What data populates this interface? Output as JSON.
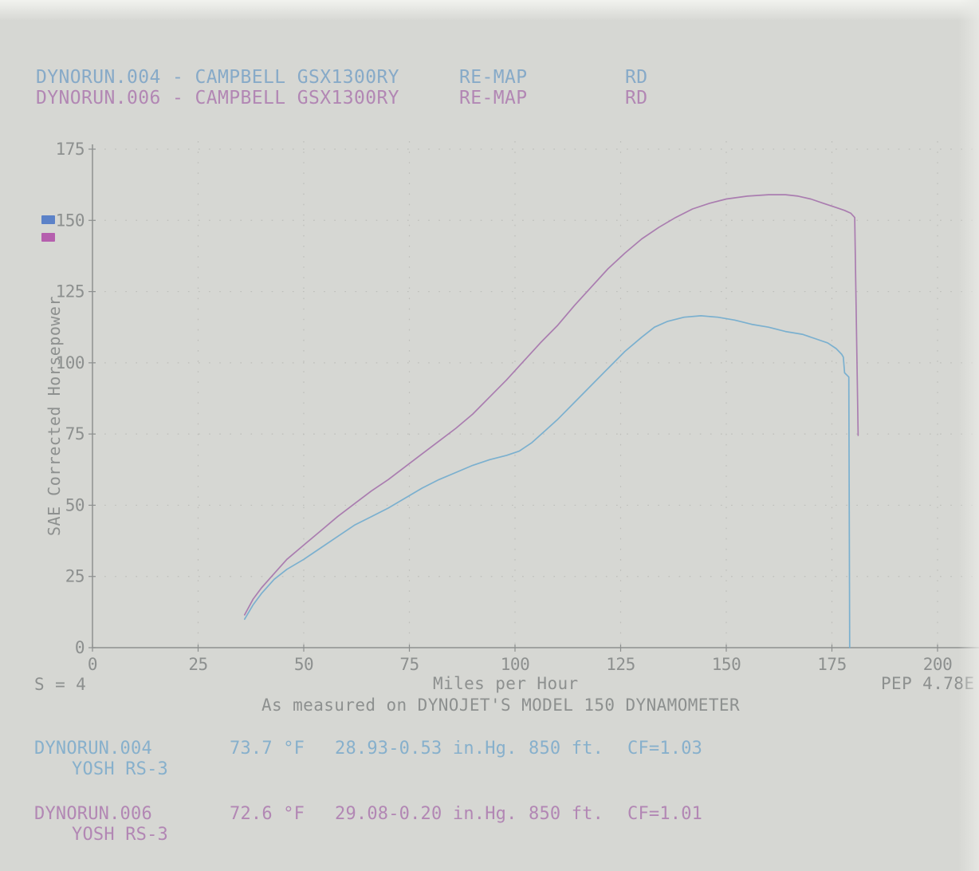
{
  "page": {
    "background": "#d6d7d3"
  },
  "header": {
    "runs": [
      {
        "file": "DYNORUN.004",
        "dash": "-",
        "subject": "CAMPBELL GSX1300RY",
        "note": "RE-MAP",
        "tag": "RD",
        "color": "#87aac8"
      },
      {
        "file": "DYNORUN.006",
        "dash": "-",
        "subject": "CAMPBELL GSX1300RY",
        "note": "RE-MAP",
        "tag": "RD",
        "color": "#b287b4"
      }
    ]
  },
  "legend": {
    "swatches": [
      {
        "run": "DYNORUN.004",
        "color": "#5c82c8"
      },
      {
        "run": "DYNORUN.006",
        "color": "#b55fae"
      }
    ]
  },
  "chart_data": {
    "type": "line",
    "title": "",
    "xlabel": "Miles per Hour",
    "ylabel": "SAE Corrected Horsepower",
    "xlim": [
      0,
      200
    ],
    "ylim": [
      0,
      175
    ],
    "xticks": [
      0,
      25,
      50,
      75,
      100,
      125,
      150,
      175,
      200
    ],
    "yticks": [
      0,
      25,
      50,
      75,
      100,
      125,
      150,
      175
    ],
    "grid": "dotted",
    "grid_color": "#bdbeba",
    "axis_color": "#8d908f",
    "legend_position": "left margin swatches",
    "series": [
      {
        "name": "DYNORUN.004",
        "color": "#76aecf",
        "peak_hp": 116.5,
        "points": [
          [
            36,
            10
          ],
          [
            38,
            15
          ],
          [
            40,
            19
          ],
          [
            43,
            24
          ],
          [
            46,
            27.5
          ],
          [
            50,
            31
          ],
          [
            54,
            35
          ],
          [
            58,
            39
          ],
          [
            62,
            43
          ],
          [
            66,
            46
          ],
          [
            70,
            49
          ],
          [
            74,
            52.5
          ],
          [
            78,
            56
          ],
          [
            82,
            59
          ],
          [
            86,
            61.5
          ],
          [
            90,
            64
          ],
          [
            94,
            66
          ],
          [
            98,
            67.5
          ],
          [
            101,
            69
          ],
          [
            104,
            72
          ],
          [
            107,
            76
          ],
          [
            110,
            80
          ],
          [
            114,
            86
          ],
          [
            118,
            92
          ],
          [
            122,
            98
          ],
          [
            126,
            104
          ],
          [
            130,
            109
          ],
          [
            133,
            112.5
          ],
          [
            136,
            114.5
          ],
          [
            140,
            116
          ],
          [
            144,
            116.5
          ],
          [
            148,
            116
          ],
          [
            152,
            115
          ],
          [
            156,
            113.5
          ],
          [
            160,
            112.5
          ],
          [
            164,
            111
          ],
          [
            168,
            110
          ],
          [
            171,
            108.5
          ],
          [
            174,
            107
          ],
          [
            176,
            105
          ],
          [
            177.3,
            103
          ],
          [
            177.7,
            102
          ],
          [
            178,
            96.5
          ],
          [
            179,
            95
          ],
          [
            179.2,
            0
          ]
        ]
      },
      {
        "name": "DYNORUN.006",
        "color": "#a878ae",
        "peak_hp": 159,
        "points": [
          [
            36,
            11.5
          ],
          [
            38,
            17
          ],
          [
            40,
            21
          ],
          [
            43,
            26
          ],
          [
            46,
            31
          ],
          [
            50,
            36
          ],
          [
            54,
            41
          ],
          [
            58,
            46
          ],
          [
            62,
            50.5
          ],
          [
            66,
            55
          ],
          [
            70,
            59
          ],
          [
            74,
            63.5
          ],
          [
            78,
            68
          ],
          [
            82,
            72.5
          ],
          [
            86,
            77
          ],
          [
            90,
            82
          ],
          [
            94,
            88
          ],
          [
            98,
            94
          ],
          [
            102,
            100.5
          ],
          [
            106,
            107
          ],
          [
            110,
            113
          ],
          [
            114,
            120
          ],
          [
            118,
            126.5
          ],
          [
            122,
            133
          ],
          [
            126,
            138.5
          ],
          [
            130,
            143.5
          ],
          [
            134,
            147.5
          ],
          [
            138,
            151
          ],
          [
            142,
            154
          ],
          [
            146,
            156
          ],
          [
            150,
            157.5
          ],
          [
            155,
            158.5
          ],
          [
            160,
            159
          ],
          [
            164,
            159
          ],
          [
            167,
            158.5
          ],
          [
            170,
            157.5
          ],
          [
            173,
            156
          ],
          [
            176,
            154.5
          ],
          [
            178,
            153.5
          ],
          [
            179.5,
            152.5
          ],
          [
            180.4,
            151
          ],
          [
            181.2,
            74.5
          ]
        ]
      }
    ]
  },
  "footer": {
    "s_value": "S = 4",
    "xaxis_title": "Miles per Hour",
    "pep": "PEP 4.78E",
    "subtitle": "As measured on DYNOJET'S MODEL 150 DYNAMOMETER"
  },
  "runs_info": [
    {
      "file": "DYNORUN.004",
      "temp": "73.7 °F",
      "baro": "28.93-0.53 in.Hg.",
      "alt": "850 ft.",
      "cf": "CF=1.03",
      "setup": "YOSH RS-3",
      "color": "#87b0cc"
    },
    {
      "file": "DYNORUN.006",
      "temp": "72.6 °F",
      "baro": "29.08-0.20 in.Hg.",
      "alt": "850 ft.",
      "cf": "CF=1.01",
      "setup": "YOSH RS-3",
      "color": "#b287b4"
    }
  ]
}
